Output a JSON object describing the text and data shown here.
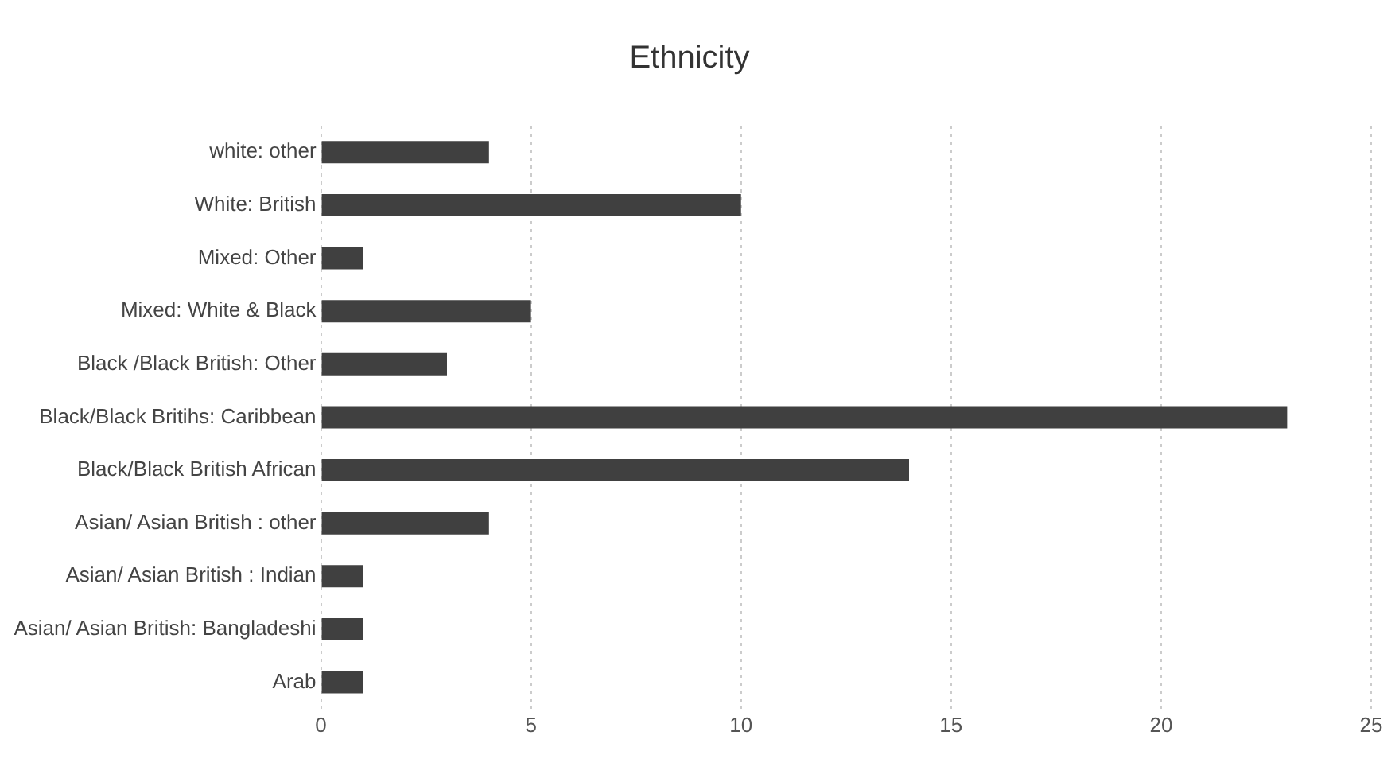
{
  "chart_data": {
    "type": "bar",
    "title": "Ethnicity",
    "orientation": "horizontal",
    "categories": [
      "white: other",
      "White: British",
      "Mixed: Other",
      "Mixed: White & Black",
      "Black /Black British: Other",
      "Black/Black Britihs: Caribbean",
      "Black/Black British African",
      "Asian/ Asian British : other",
      "Asian/ Asian British : Indian",
      "Asian/ Asian British: Bangladeshi",
      "Arab"
    ],
    "values": [
      4,
      10,
      1,
      5,
      3,
      23,
      14,
      4,
      1,
      1,
      1
    ],
    "color": "#404040",
    "xlim": [
      0,
      25
    ],
    "xticks": [
      0,
      5,
      10,
      15,
      20,
      25
    ],
    "grid": "x",
    "legend": false
  }
}
